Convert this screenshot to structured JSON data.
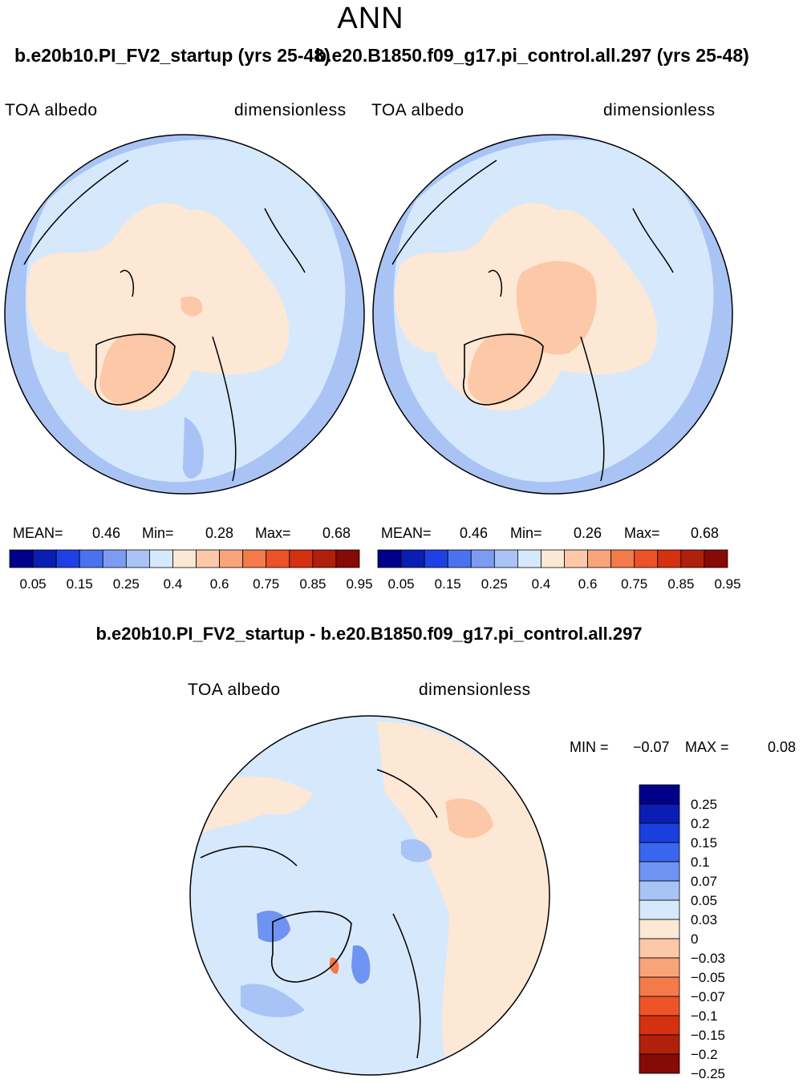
{
  "season": "ANN",
  "panels": [
    {
      "case_title": "b.e20b10.PI_FV2_startup (yrs 25-48)",
      "variable": "TOA  albedo",
      "units": "dimensionless",
      "stats": {
        "mean_label": "MEAN=",
        "mean": "0.46",
        "min_label": "Min=",
        "min": "0.28",
        "max_label": "Max=",
        "max": "0.68"
      }
    },
    {
      "case_title": "b.e20.B1850.f09_g17.pi_control.all.297 (yrs 25-48)",
      "variable": "TOA  albedo",
      "units": "dimensionless",
      "stats": {
        "mean_label": "MEAN=",
        "mean": "0.46",
        "min_label": "Min=",
        "min": "0.26",
        "max_label": "Max=",
        "max": "0.68"
      }
    }
  ],
  "diff": {
    "title": "b.e20b10.PI_FV2_startup - b.e20.B1850.f09_g17.pi_control.all.297",
    "variable": "TOA  albedo",
    "units": "dimensionless",
    "min_label": "MIN =",
    "min": "−0.07",
    "max_label": "MAX =",
    "max": "0.08"
  },
  "chart_data": [
    {
      "type": "heatmap",
      "projection": "north-polar-stereographic",
      "title": "b.e20b10.PI_FV2_startup (yrs 25-48)",
      "variable": "TOA albedo",
      "units": "dimensionless",
      "mean": 0.46,
      "min": 0.28,
      "max": 0.68,
      "colorbar": {
        "colors": [
          "#00008a",
          "#0a1eb4",
          "#1e41e6",
          "#4a72f0",
          "#7b9cf2",
          "#a9c3f5",
          "#d6e8fb",
          "#fde8d6",
          "#fcc8a7",
          "#f9a47a",
          "#f47a4a",
          "#ec5128",
          "#d5300f",
          "#b0200a",
          "#860a08"
        ],
        "tick_labels": [
          "0.05",
          "0.15",
          "0.25",
          "0.4",
          "0.6",
          "0.75",
          "0.85",
          "0.95"
        ]
      }
    },
    {
      "type": "heatmap",
      "projection": "north-polar-stereographic",
      "title": "b.e20.B1850.f09_g17.pi_control.all.297 (yrs 25-48)",
      "variable": "TOA albedo",
      "units": "dimensionless",
      "mean": 0.46,
      "min": 0.26,
      "max": 0.68,
      "colorbar": {
        "colors": [
          "#00008a",
          "#0a1eb4",
          "#1e41e6",
          "#4a72f0",
          "#7b9cf2",
          "#a9c3f5",
          "#d6e8fb",
          "#fde8d6",
          "#fcc8a7",
          "#f9a47a",
          "#f47a4a",
          "#ec5128",
          "#d5300f",
          "#b0200a",
          "#860a08"
        ],
        "tick_labels": [
          "0.05",
          "0.15",
          "0.25",
          "0.4",
          "0.6",
          "0.75",
          "0.85",
          "0.95"
        ]
      }
    },
    {
      "type": "heatmap",
      "projection": "north-polar-stereographic",
      "title": "b.e20b10.PI_FV2_startup - b.e20.B1850.f09_g17.pi_control.all.297",
      "variable": "TOA albedo",
      "units": "dimensionless",
      "min": -0.07,
      "max": 0.08,
      "colorbar": {
        "orientation": "vertical",
        "colors": [
          "#00008a",
          "#0a1eb4",
          "#1a3fdf",
          "#3a66ee",
          "#6f93f2",
          "#a8c4f6",
          "#d6e8fb",
          "#fde8d6",
          "#fcc8a7",
          "#f9a47a",
          "#f47a4a",
          "#ef5428",
          "#d5300f",
          "#b0200a",
          "#860a08"
        ],
        "tick_labels": [
          "0.25",
          "0.2",
          "0.15",
          "0.1",
          "0.07",
          "0.05",
          "0.03",
          "0",
          "−0.03",
          "−0.05",
          "−0.07",
          "−0.1",
          "−0.15",
          "−0.2",
          "−0.25"
        ]
      }
    }
  ]
}
